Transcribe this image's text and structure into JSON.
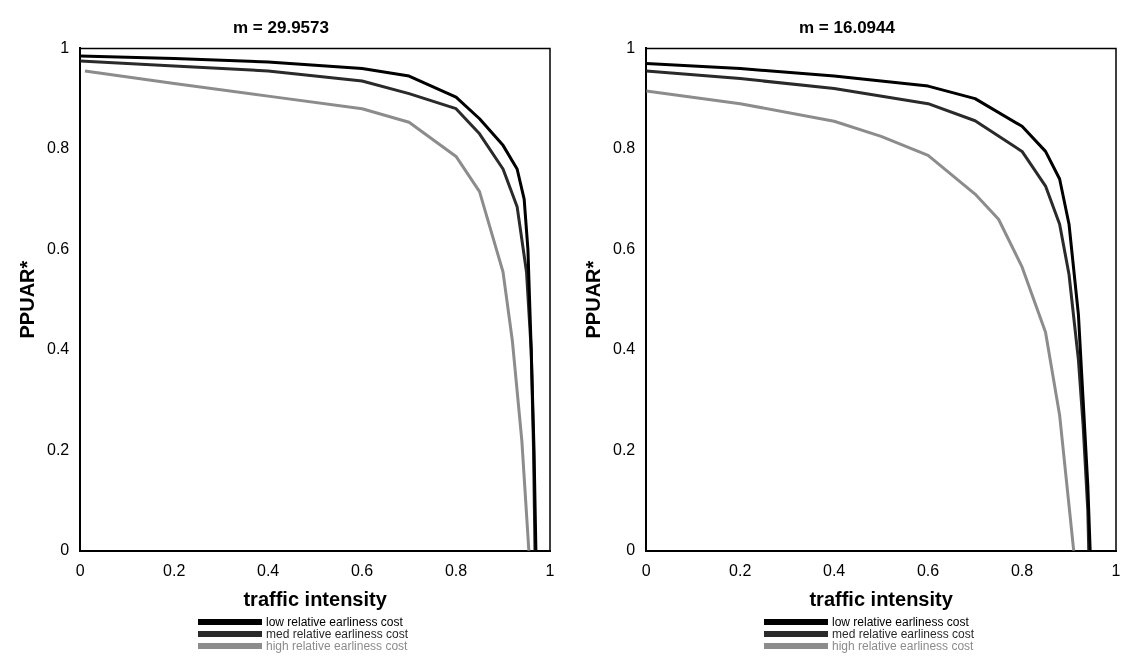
{
  "chart_data": [
    {
      "type": "line",
      "title": "m = 29.9573",
      "xlabel": "traffic intensity",
      "ylabel": "PPUAR*",
      "xlim": [
        0,
        1
      ],
      "ylim": [
        0,
        1
      ],
      "xticks": [
        0,
        0.2,
        0.4,
        0.6,
        0.8,
        1
      ],
      "yticks": [
        0,
        0.2,
        0.4,
        0.6,
        0.8,
        1
      ],
      "grid": false,
      "legend": "bottom",
      "marker": "none",
      "line_style": "solid",
      "series": [
        {
          "name": "low relative earliness cost",
          "color": "#000000",
          "x": [
            0,
            0.2,
            0.4,
            0.6,
            0.7,
            0.8,
            0.85,
            0.9,
            0.93,
            0.945,
            0.953,
            0.96,
            0.966,
            0.97
          ],
          "values": [
            0.985,
            0.98,
            0.973,
            0.96,
            0.945,
            0.903,
            0.86,
            0.807,
            0.76,
            0.7,
            0.6,
            0.4,
            0.2,
            0
          ]
        },
        {
          "name": "med relative earliness cost",
          "color": "#2a2a2a",
          "x": [
            0,
            0.2,
            0.4,
            0.6,
            0.7,
            0.8,
            0.85,
            0.9,
            0.93,
            0.95,
            0.96,
            0.965,
            0.968
          ],
          "values": [
            0.975,
            0.965,
            0.955,
            0.935,
            0.91,
            0.88,
            0.83,
            0.76,
            0.685,
            0.555,
            0.4,
            0.2,
            0
          ]
        },
        {
          "name": "high relative earliness cost",
          "color": "#8c8c8c",
          "x": [
            0.01,
            0.2,
            0.4,
            0.6,
            0.7,
            0.8,
            0.85,
            0.9,
            0.92,
            0.94,
            0.955
          ],
          "values": [
            0.955,
            0.93,
            0.905,
            0.88,
            0.853,
            0.785,
            0.715,
            0.555,
            0.417,
            0.22,
            0
          ]
        }
      ]
    },
    {
      "type": "line",
      "title": "m = 16.0944",
      "xlabel": "traffic intensity",
      "ylabel": "PPUAR*",
      "xlim": [
        0,
        1
      ],
      "ylim": [
        0,
        1
      ],
      "xticks": [
        0,
        0.2,
        0.4,
        0.6,
        0.8,
        1
      ],
      "yticks": [
        0,
        0.2,
        0.4,
        0.6,
        0.8,
        1
      ],
      "grid": false,
      "legend": "bottom",
      "marker": "none",
      "line_style": "solid",
      "series": [
        {
          "name": "low relative earliness cost",
          "color": "#000000",
          "x": [
            0,
            0.2,
            0.4,
            0.6,
            0.7,
            0.8,
            0.85,
            0.88,
            0.9,
            0.92,
            0.93,
            0.94,
            0.945
          ],
          "values": [
            0.97,
            0.96,
            0.945,
            0.925,
            0.9,
            0.845,
            0.795,
            0.74,
            0.65,
            0.47,
            0.3,
            0.13,
            0
          ]
        },
        {
          "name": "med relative earliness cost",
          "color": "#2a2a2a",
          "x": [
            0,
            0.2,
            0.4,
            0.6,
            0.7,
            0.8,
            0.85,
            0.88,
            0.9,
            0.92,
            0.93,
            0.94,
            0.942
          ],
          "values": [
            0.955,
            0.94,
            0.92,
            0.89,
            0.856,
            0.795,
            0.726,
            0.65,
            0.55,
            0.38,
            0.25,
            0.08,
            0
          ]
        },
        {
          "name": "high relative earliness cost",
          "color": "#8c8c8c",
          "x": [
            0,
            0.2,
            0.4,
            0.5,
            0.6,
            0.7,
            0.75,
            0.8,
            0.85,
            0.88,
            0.9,
            0.91
          ],
          "values": [
            0.915,
            0.89,
            0.855,
            0.825,
            0.787,
            0.71,
            0.66,
            0.565,
            0.435,
            0.27,
            0.09,
            0
          ]
        }
      ]
    }
  ]
}
